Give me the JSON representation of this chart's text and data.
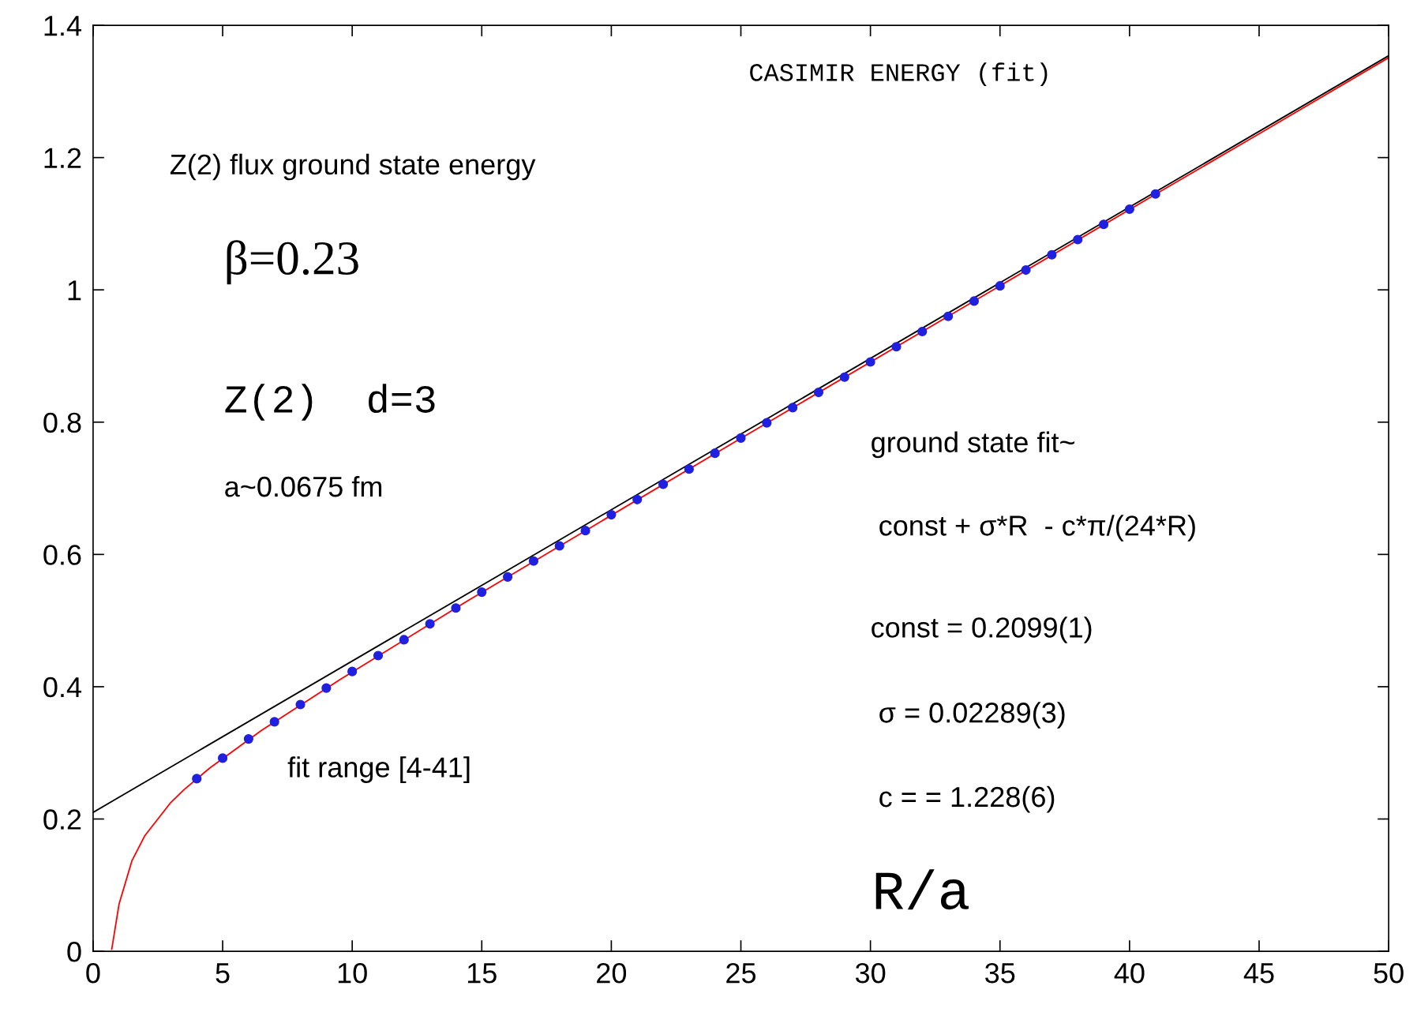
{
  "chart_data": {
    "type": "scatter",
    "title": "CASIMIR ENERGY (fit)",
    "xlabel": "R/a",
    "xlim": [
      0,
      50
    ],
    "ylim": [
      0,
      1.4
    ],
    "xticks": [
      0,
      5,
      10,
      15,
      20,
      25,
      30,
      35,
      40,
      45,
      50
    ],
    "yticks": [
      0,
      {
        "value": 0.2,
        "label": "0.2"
      },
      {
        "value": 0.4,
        "label": "0.4"
      },
      {
        "value": 0.6,
        "label": "0.6"
      },
      {
        "value": 0.8,
        "label": "0.8"
      },
      1,
      {
        "value": 1.2,
        "label": "1.2"
      },
      {
        "value": 1.4,
        "label": "1.4"
      }
    ],
    "grid": false,
    "legend": false,
    "series": [
      {
        "type": "line",
        "color": "#000000",
        "x": [
          0,
          50
        ],
        "values": [
          0.21,
          1.354
        ],
        "marker": "none",
        "line_style": "solid"
      },
      {
        "type": "line",
        "color": "#ff0000",
        "x": [
          0.72,
          1,
          1.5,
          2,
          3,
          3.5,
          4.5,
          6.5,
          9.5,
          14.5,
          24.5,
          41.5,
          45,
          50
        ],
        "values": [
          0.003,
          0.071,
          0.137,
          0.175,
          0.225,
          0.244,
          0.277,
          0.334,
          0.41,
          0.531,
          0.764,
          1.156,
          1.236,
          1.351
        ],
        "marker": "none",
        "line_style": "solid"
      },
      {
        "type": "scatter",
        "color": "#2020e0",
        "marker": "circle",
        "x": [
          4,
          5,
          6,
          7,
          8,
          9,
          10,
          11,
          12,
          13,
          14,
          15,
          16,
          17,
          18,
          19,
          20,
          21,
          22,
          23,
          24,
          25,
          26,
          27,
          28,
          29,
          30,
          31,
          32,
          33,
          34,
          35,
          36,
          37,
          38,
          39,
          40,
          41
        ],
        "values": [
          0.261,
          0.292,
          0.321,
          0.347,
          0.373,
          0.398,
          0.423,
          0.447,
          0.471,
          0.495,
          0.519,
          0.543,
          0.566,
          0.59,
          0.613,
          0.636,
          0.66,
          0.683,
          0.706,
          0.729,
          0.753,
          0.776,
          0.799,
          0.822,
          0.845,
          0.868,
          0.891,
          0.914,
          0.937,
          0.96,
          0.983,
          1.006,
          1.03,
          1.053,
          1.076,
          1.099,
          1.122,
          1.145
        ]
      }
    ],
    "annotations": [
      "Z(2) flux ground state energy",
      "β=0.23",
      "Z(2)  d=3",
      "a~0.0675 fm",
      "fit range [4-41]",
      "ground state fit~",
      " const + σ*R  - c*π/(24*R)",
      "const = 0.2099(1)",
      " σ = 0.02289(3)",
      " c = = 1.228(6)"
    ]
  }
}
